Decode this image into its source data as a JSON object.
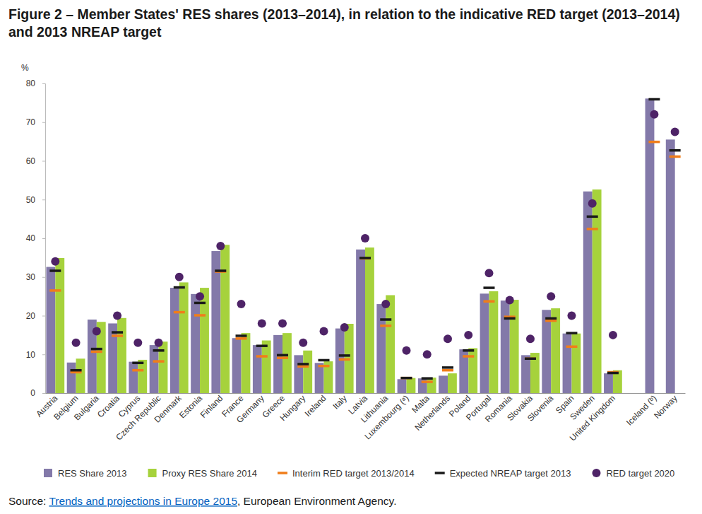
{
  "chart_data": {
    "type": "bar",
    "title": "Figure 2 – Member States' RES shares (2013–2014), in relation to the indicative RED target (2013–2014) and 2013 NREAP target",
    "ylabel": "%",
    "source": {
      "prefix": "Source: ",
      "link": "Trends and projections in Europe 2015",
      "suffix": ", European Environment Agency."
    },
    "categories": [
      "Austria",
      "Belgium",
      "Bulgaria",
      "Croatia",
      "Cyprus",
      "Czech Republic",
      "Denmark",
      "Estonia",
      "Finland",
      "France",
      "Germany",
      "Greece",
      "Hungary",
      "Ireland",
      "Italy",
      "Latvia",
      "Lithuania",
      "Luxembourg (ᵃ)",
      "Malta",
      "Netherlands",
      "Poland",
      "Portugal",
      "Romania",
      "Slovakia",
      "Slovenia",
      "Spain",
      "Sweden",
      "United Kingdom",
      null,
      "Iceland (ᵇ)",
      "Norway"
    ],
    "series": [
      {
        "name": "RES Share 2013",
        "type": "bar",
        "color": "#8379a9",
        "values": [
          32.6,
          7.9,
          19.0,
          18.0,
          8.1,
          12.4,
          27.2,
          25.6,
          36.7,
          14.2,
          12.4,
          15.0,
          9.8,
          7.8,
          16.7,
          37.1,
          23.0,
          3.6,
          3.8,
          4.5,
          11.3,
          25.7,
          23.9,
          9.8,
          21.5,
          15.4,
          52.1,
          5.1,
          null,
          76.1,
          65.5
        ]
      },
      {
        "name": "Proxy RES Share 2014",
        "type": "bar",
        "color": "#a6d23c",
        "values": [
          34.9,
          8.9,
          18.4,
          19.4,
          8.6,
          13.3,
          28.6,
          27.2,
          38.3,
          15.5,
          13.6,
          15.5,
          11.0,
          8.2,
          17.9,
          37.6,
          25.3,
          3.9,
          4.0,
          5.1,
          11.6,
          26.3,
          24.1,
          10.4,
          21.9,
          15.4,
          52.6,
          5.9,
          null,
          null,
          null
        ]
      },
      {
        "name": "Interim RED target 2013/2014",
        "type": "marker",
        "marker": "dash",
        "color": "#f07d1a",
        "values": [
          26.5,
          5.4,
          10.7,
          14.8,
          5.9,
          8.2,
          20.9,
          20.1,
          31.4,
          14.1,
          9.5,
          9.1,
          6.9,
          7.0,
          8.7,
          34.8,
          17.4,
          3.9,
          2.9,
          5.9,
          9.5,
          23.7,
          19.7,
          8.9,
          18.7,
          12.0,
          42.4,
          5.4,
          null,
          64.9,
          61.1
        ]
      },
      {
        "name": "Expected NREAP target 2013",
        "type": "marker",
        "marker": "dash",
        "color": "#1a1a1a",
        "values": [
          31.6,
          5.9,
          11.4,
          15.7,
          7.8,
          11.0,
          27.3,
          23.3,
          31.6,
          14.8,
          12.2,
          9.8,
          7.5,
          8.5,
          9.7,
          34.9,
          19.0,
          3.9,
          3.8,
          6.6,
          11.0,
          27.2,
          19.3,
          8.9,
          19.3,
          15.5,
          45.6,
          5.2,
          null,
          75.9,
          62.7
        ]
      },
      {
        "name": "RED target 2020",
        "type": "marker",
        "marker": "circle",
        "color": "#4e2367",
        "values": [
          34,
          13,
          16,
          20,
          13,
          13,
          30,
          25,
          38,
          23,
          18,
          18,
          13,
          16,
          17,
          40,
          23,
          11,
          10,
          14,
          15,
          31,
          24,
          14,
          25,
          20,
          49,
          15,
          null,
          72,
          67.5
        ]
      }
    ],
    "ylim": [
      0,
      80
    ],
    "yticks": [
      0,
      10,
      20,
      30,
      40,
      50,
      60,
      70,
      80
    ],
    "grid": false,
    "legend": "bottom"
  }
}
